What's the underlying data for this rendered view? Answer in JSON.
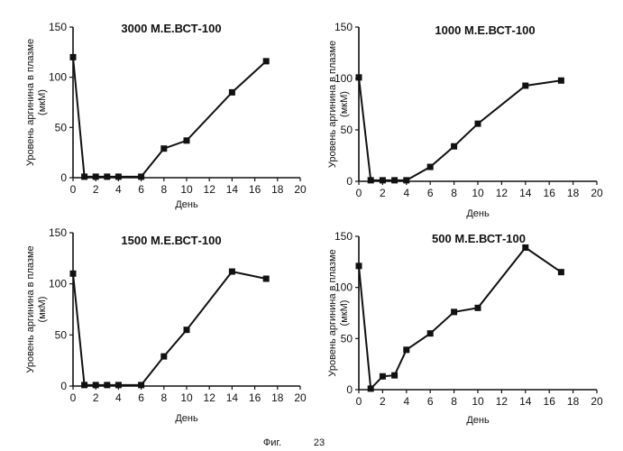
{
  "caption": {
    "fig_label": "Фиг.",
    "fig_number": "23"
  },
  "chart_data": [
    {
      "type": "line",
      "title": "3000 М.Е.ВСТ-100",
      "xlabel": "День",
      "ylabel_line1": "Уровень аргинина в плазме",
      "ylabel_line2": "(мкМ)",
      "xlim": [
        0,
        20
      ],
      "ylim": [
        0,
        150
      ],
      "xticks": [
        0,
        2,
        4,
        6,
        8,
        10,
        12,
        14,
        16,
        18,
        20
      ],
      "yticks": [
        0,
        50,
        100,
        150
      ],
      "x": [
        0,
        1,
        2,
        3,
        4,
        6,
        8,
        10,
        14,
        17
      ],
      "y": [
        120,
        1,
        1,
        1,
        1,
        1,
        29,
        37,
        85,
        116
      ],
      "grid": false,
      "color": "#111111"
    },
    {
      "type": "line",
      "title": "1000 М.Е.ВСТ-100",
      "xlabel": "День",
      "ylabel_line1": "Уровень аргинина в плазме",
      "ylabel_line2": "(мкМ)",
      "xlim": [
        0,
        20
      ],
      "ylim": [
        0,
        150
      ],
      "xticks": [
        0,
        2,
        4,
        6,
        8,
        10,
        12,
        14,
        16,
        18,
        20
      ],
      "yticks": [
        0,
        50,
        100,
        150
      ],
      "x": [
        0,
        1,
        2,
        3,
        4,
        6,
        8,
        10,
        14,
        17
      ],
      "y": [
        101,
        1,
        1,
        1,
        1,
        14,
        34,
        56,
        93,
        98
      ],
      "grid": false,
      "color": "#111111"
    },
    {
      "type": "line",
      "title": "1500 М.Е.ВСТ-100",
      "xlabel": "День",
      "ylabel_line1": "Уровень аргинина в плазме",
      "ylabel_line2": "(мкМ)",
      "xlim": [
        0,
        20
      ],
      "ylim": [
        0,
        150
      ],
      "xticks": [
        0,
        2,
        4,
        6,
        8,
        10,
        12,
        14,
        16,
        18,
        20
      ],
      "yticks": [
        0,
        50,
        100,
        150
      ],
      "x": [
        0,
        1,
        2,
        3,
        4,
        6,
        8,
        10,
        14,
        17
      ],
      "y": [
        110,
        1,
        1,
        1,
        1,
        1,
        29,
        55,
        112,
        105
      ],
      "grid": false,
      "color": "#111111"
    },
    {
      "type": "line",
      "title": "500 М.Е.ВСТ-100",
      "xlabel": "День",
      "ylabel_line1": "Уровень аргинина в плазме",
      "ylabel_line2": "(мкМ)",
      "xlim": [
        0,
        20
      ],
      "ylim": [
        0,
        150
      ],
      "xticks": [
        0,
        2,
        4,
        6,
        8,
        10,
        12,
        14,
        16,
        18,
        20
      ],
      "yticks": [
        0,
        50,
        100,
        150
      ],
      "x": [
        0,
        1,
        2,
        3,
        4,
        6,
        8,
        10,
        14,
        17
      ],
      "y": [
        121,
        1,
        13,
        14,
        39,
        55,
        76,
        80,
        139,
        115
      ],
      "grid": false,
      "color": "#111111"
    }
  ]
}
